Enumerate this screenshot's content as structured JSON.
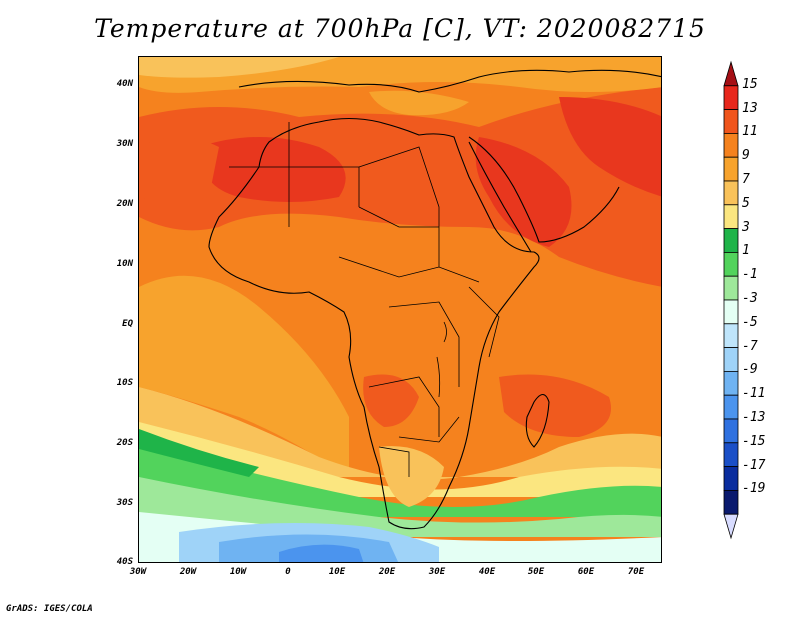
{
  "title": "Temperature at 700hPa [C], VT: 2020082715",
  "credit": "GrADS: IGES/COLA",
  "map": {
    "projection": "latlon",
    "lon_range": [
      -30,
      75
    ],
    "lat_range": [
      -40,
      45
    ],
    "lat_ticks": [
      "40N",
      "30N",
      "20N",
      "10N",
      "EQ",
      "10S",
      "20S",
      "30S",
      "40S"
    ],
    "lon_ticks": [
      "30W",
      "20W",
      "10W",
      "0",
      "10E",
      "20E",
      "30E",
      "40E",
      "50E",
      "60E",
      "70E"
    ],
    "fill_colors": {
      "hot": "#e8371e",
      "very_warm": "#f05a1e",
      "warm": "#f5821e",
      "mild_warm": "#f7a32d",
      "mild": "#f9c25a",
      "cool_yellow": "#fbe680",
      "green_dark": "#1fb449",
      "green": "#52d35c",
      "green_light": "#9ee89a",
      "pale": "#e4fff4",
      "sky": "#9fd3f8",
      "blue_mid": "#6fb3f2",
      "blue": "#4b94ee"
    }
  },
  "colorbar": {
    "labels": [
      "15",
      "13",
      "11",
      "9",
      "7",
      "5",
      "3",
      "1",
      "-1",
      "-3",
      "-5",
      "-7",
      "-9",
      "-11",
      "-13",
      "-15",
      "-17",
      "-19"
    ],
    "colors": [
      "#a50f15",
      "#e8271c",
      "#f0551c",
      "#f5821e",
      "#f7a32d",
      "#f9c25a",
      "#fbe680",
      "#1fb449",
      "#52d35c",
      "#9ee89a",
      "#e4fff4",
      "#bfe5fb",
      "#9fd3f8",
      "#6fb3f2",
      "#4b94ee",
      "#2f71e0",
      "#1a4fc7",
      "#0a2d9e",
      "#0a1a6e",
      "#d8dcff"
    ]
  }
}
